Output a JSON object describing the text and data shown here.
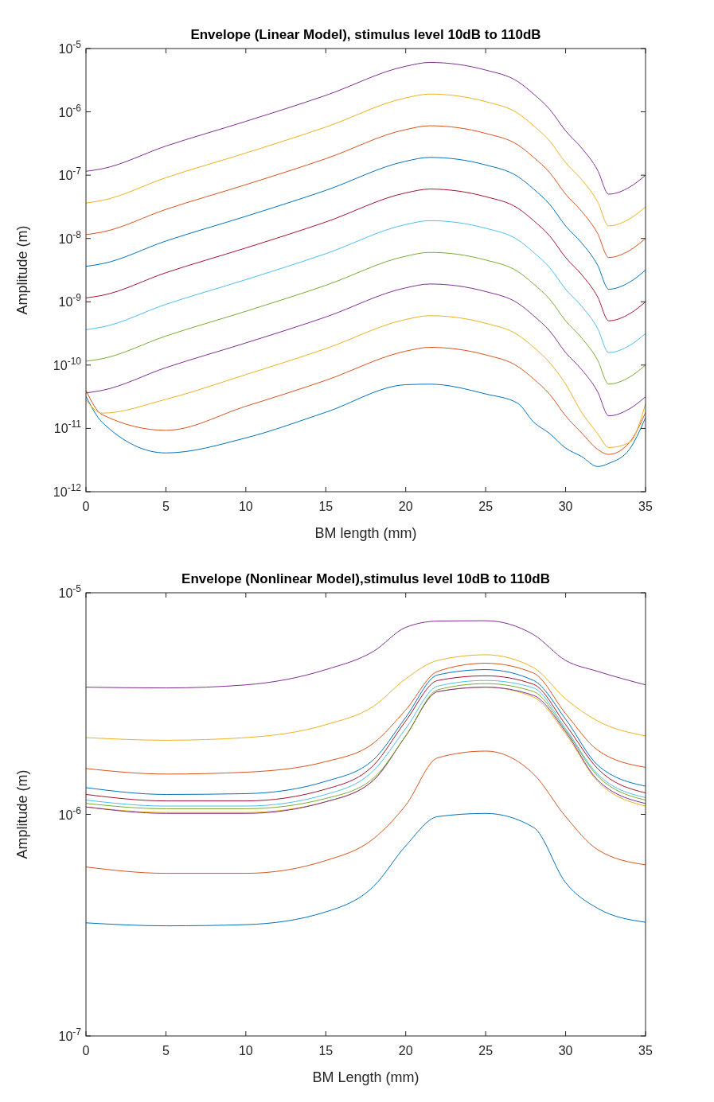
{
  "chart_data": [
    {
      "type": "line",
      "title": "Envelope (Linear Model), stimulus level 10dB to 110dB",
      "xlabel": "BM length (mm)",
      "ylabel": "Amplitude (m)",
      "log": true,
      "grid": false,
      "x": [
        0,
        1,
        5,
        10,
        15,
        20,
        21.5,
        25,
        27,
        28,
        29,
        30,
        31,
        32,
        32.7,
        34,
        35
      ],
      "xlim": [
        0,
        35
      ],
      "xticks": [
        0,
        5,
        10,
        15,
        20,
        25,
        30,
        35
      ],
      "ylim": [
        1e-12,
        1e-05
      ],
      "yticks": [
        {
          "value": 1e-12,
          "label": "10$^{-12}$"
        },
        {
          "value": 1e-11,
          "label": "10$^{-11}$"
        },
        {
          "value": 1e-10,
          "label": "10$^{-10}$"
        },
        {
          "value": 1e-09,
          "label": "10$^{-9}$"
        },
        {
          "value": 1e-08,
          "label": "10$^{-8}$"
        },
        {
          "value": 1e-07,
          "label": "10$^{-7}$"
        },
        {
          "value": 1e-06,
          "label": "10$^{-6}$"
        },
        {
          "value": 1e-05,
          "label": "10$^{-5}$"
        }
      ],
      "series": [
        {
          "color": "#0072bd",
          "values": [
            3.2e-11,
            1.26e-11,
            4.1e-12,
            7.08e-12,
            1.8e-11,
            4.9e-11,
            5e-11,
            3.5e-11,
            2.5e-11,
            1.26e-11,
            8.3e-12,
            4.9e-12,
            3.6e-12,
            2.5e-12,
            2.8e-12,
            4.7e-12,
            1.48e-11
          ]
        },
        {
          "color": "#d95319",
          "values": [
            3.98e-11,
            1.66e-11,
            9.33e-12,
            2.24e-11,
            5.75e-11,
            1.66e-10,
            1.91e-10,
            1.45e-10,
            9.55e-11,
            6.03e-11,
            3.47e-11,
            1.58e-11,
            8.51e-12,
            4.68e-12,
            3.89e-12,
            6.03e-12,
            1.78e-11
          ]
        },
        {
          "color": "#edb120",
          "values": [
            2.82e-11,
            1.74e-11,
            2.88e-11,
            7.08e-11,
            1.82e-10,
            5.25e-10,
            6.03e-10,
            4.57e-10,
            3.02e-10,
            1.91e-10,
            1.1e-10,
            5.01e-11,
            1.8e-11,
            8.3e-12,
            5e-12,
            6e-12,
            2.45e-11
          ]
        },
        {
          "color": "#7e2f8e",
          "values": [
            3.63e-11,
            3.98e-11,
            9.12e-11,
            2.24e-10,
            5.75e-10,
            1.66e-09,
            1.91e-09,
            1.45e-09,
            9.55e-10,
            6.03e-10,
            3.47e-10,
            1.58e-10,
            8.51e-11,
            3.8e-11,
            1.58e-11,
            2.04e-11,
            3.16e-11
          ]
        },
        {
          "color": "#77ac30",
          "values": [
            1.15e-10,
            1.26e-10,
            2.88e-10,
            7.08e-10,
            1.82e-09,
            5.25e-09,
            6.03e-09,
            4.57e-09,
            3.02e-09,
            1.91e-09,
            1.1e-09,
            5.01e-10,
            2.69e-10,
            1.2e-10,
            5.01e-11,
            6.46e-11,
            1e-10
          ]
        },
        {
          "color": "#4dbeee",
          "values": [
            3.63e-10,
            3.98e-10,
            9.12e-10,
            2.24e-09,
            5.75e-09,
            1.66e-08,
            1.91e-08,
            1.45e-08,
            9.55e-09,
            6.03e-09,
            3.47e-09,
            1.58e-09,
            8.51e-10,
            3.8e-10,
            1.58e-10,
            2.04e-10,
            3.16e-10
          ]
        },
        {
          "color": "#a2142f",
          "values": [
            1.15e-09,
            1.26e-09,
            2.88e-09,
            7.08e-09,
            1.82e-08,
            5.25e-08,
            6.03e-08,
            4.57e-08,
            3.02e-08,
            1.91e-08,
            1.1e-08,
            5.01e-09,
            2.69e-09,
            1.2e-09,
            5.01e-10,
            6.46e-10,
            1e-09
          ]
        },
        {
          "color": "#0072bd",
          "values": [
            3.63e-09,
            3.98e-09,
            9.12e-09,
            2.24e-08,
            5.75e-08,
            1.66e-07,
            1.91e-07,
            1.45e-07,
            9.55e-08,
            6.03e-08,
            3.47e-08,
            1.58e-08,
            8.51e-09,
            3.8e-09,
            1.58e-09,
            2.04e-09,
            3.16e-09
          ]
        },
        {
          "color": "#d95319",
          "values": [
            1.15e-08,
            1.26e-08,
            2.88e-08,
            7.08e-08,
            1.82e-07,
            5.25e-07,
            6.03e-07,
            4.57e-07,
            3.02e-07,
            1.91e-07,
            1.1e-07,
            5.01e-08,
            2.69e-08,
            1.2e-08,
            5.01e-09,
            6.46e-09,
            1e-08
          ]
        },
        {
          "color": "#edb120",
          "values": [
            3.63e-08,
            3.98e-08,
            9.12e-08,
            2.24e-07,
            5.75e-07,
            1.66e-06,
            1.91e-06,
            1.45e-06,
            9.55e-07,
            6.03e-07,
            3.47e-07,
            1.58e-07,
            8.51e-08,
            3.8e-08,
            1.58e-08,
            2.04e-08,
            3.16e-08
          ]
        },
        {
          "color": "#7e2f8e",
          "values": [
            1.15e-07,
            1.26e-07,
            2.88e-07,
            7.08e-07,
            1.82e-06,
            5.25e-06,
            6.03e-06,
            4.57e-06,
            3.02e-06,
            1.91e-06,
            1.1e-06,
            5.01e-07,
            2.69e-07,
            1.2e-07,
            5.01e-08,
            6.46e-08,
            1e-07
          ]
        }
      ]
    },
    {
      "type": "line",
      "title": "Envelope (Nonlinear Model),stimulus level 10dB to 110dB",
      "xlabel": "BM Length (mm)",
      "ylabel": "Amplitude (m)",
      "log": true,
      "grid": false,
      "x": [
        0,
        5,
        10,
        15,
        18,
        20,
        22,
        25,
        28,
        30,
        32,
        35
      ],
      "xlim": [
        0,
        35
      ],
      "xticks": [
        0,
        5,
        10,
        15,
        20,
        25,
        30,
        35
      ],
      "ylim": [
        1e-07,
        1e-05
      ],
      "yticks": [
        {
          "value": 1e-07,
          "label": "10$^{-7}$"
        },
        {
          "value": 1e-06,
          "label": "10$^{-6}$"
        },
        {
          "value": 1e-05,
          "label": "10$^{-5}$"
        }
      ],
      "series": [
        {
          "color": "#0072bd",
          "values": [
            3.24e-07,
            3.14e-07,
            3.18e-07,
            3.63e-07,
            4.74e-07,
            7.21e-07,
            9.77e-07,
            1.01e-06,
            8.73e-07,
            4.92e-07,
            3.77e-07,
            3.26e-07
          ]
        },
        {
          "color": "#d95319",
          "values": [
            5.79e-07,
            5.42e-07,
            5.42e-07,
            6.19e-07,
            7.78e-07,
            1.1e-06,
            1.8e-06,
            1.93e-06,
            1.52e-06,
            9.77e-07,
            6.93e-07,
            5.92e-07
          ]
        },
        {
          "color": "#edb120",
          "values": [
            1.08e-06,
            1.02e-06,
            1.02e-06,
            1.14e-06,
            1.43e-06,
            2.26e-06,
            3.58e-06,
            3.75e-06,
            3.38e-06,
            2.31e-06,
            1.41e-06,
            1.09e-06
          ]
        },
        {
          "color": "#7e2f8e",
          "values": [
            1.08e-06,
            1.01e-06,
            1.01e-06,
            1.14e-06,
            1.43e-06,
            2.26e-06,
            3.58e-06,
            3.75e-06,
            3.44e-06,
            2.36e-06,
            1.43e-06,
            1.12e-06
          ]
        },
        {
          "color": "#77ac30",
          "values": [
            1.12e-06,
            1.06e-06,
            1.06e-06,
            1.18e-06,
            1.46e-06,
            2.26e-06,
            3.65e-06,
            3.89e-06,
            3.58e-06,
            2.4e-06,
            1.49e-06,
            1.16e-06
          ]
        },
        {
          "color": "#4dbeee",
          "values": [
            1.16e-06,
            1.09e-06,
            1.09e-06,
            1.23e-06,
            1.58e-06,
            2.44e-06,
            3.79e-06,
            4.02e-06,
            3.72e-06,
            2.44e-06,
            1.52e-06,
            1.19e-06
          ]
        },
        {
          "color": "#a2142f",
          "values": [
            1.23e-06,
            1.15e-06,
            1.15e-06,
            1.3e-06,
            1.67e-06,
            2.64e-06,
            4.02e-06,
            4.22e-06,
            3.86e-06,
            2.54e-06,
            1.61e-06,
            1.25e-06
          ]
        },
        {
          "color": "#0072bd",
          "values": [
            1.32e-06,
            1.23e-06,
            1.24e-06,
            1.41e-06,
            1.77e-06,
            2.74e-06,
            4.26e-06,
            4.5e-06,
            4.02e-06,
            2.69e-06,
            1.67e-06,
            1.34e-06
          ]
        },
        {
          "color": "#d95319",
          "values": [
            1.61e-06,
            1.52e-06,
            1.55e-06,
            1.73e-06,
            2.1e-06,
            2.96e-06,
            4.42e-06,
            4.81e-06,
            4.34e-06,
            2.85e-06,
            1.95e-06,
            1.63e-06
          ]
        },
        {
          "color": "#edb120",
          "values": [
            2.22e-06,
            2.16e-06,
            2.22e-06,
            2.54e-06,
            3.08e-06,
            4.09e-06,
            4.95e-06,
            5.25e-06,
            4.59e-06,
            3.32e-06,
            2.64e-06,
            2.26e-06
          ]
        },
        {
          "color": "#7e2f8e",
          "values": [
            3.75e-06,
            3.72e-06,
            3.84e-06,
            4.5e-06,
            5.45e-06,
            6.98e-06,
            7.45e-06,
            7.48e-06,
            6.47e-06,
            4.95e-06,
            4.42e-06,
            3.84e-06
          ]
        }
      ]
    }
  ]
}
